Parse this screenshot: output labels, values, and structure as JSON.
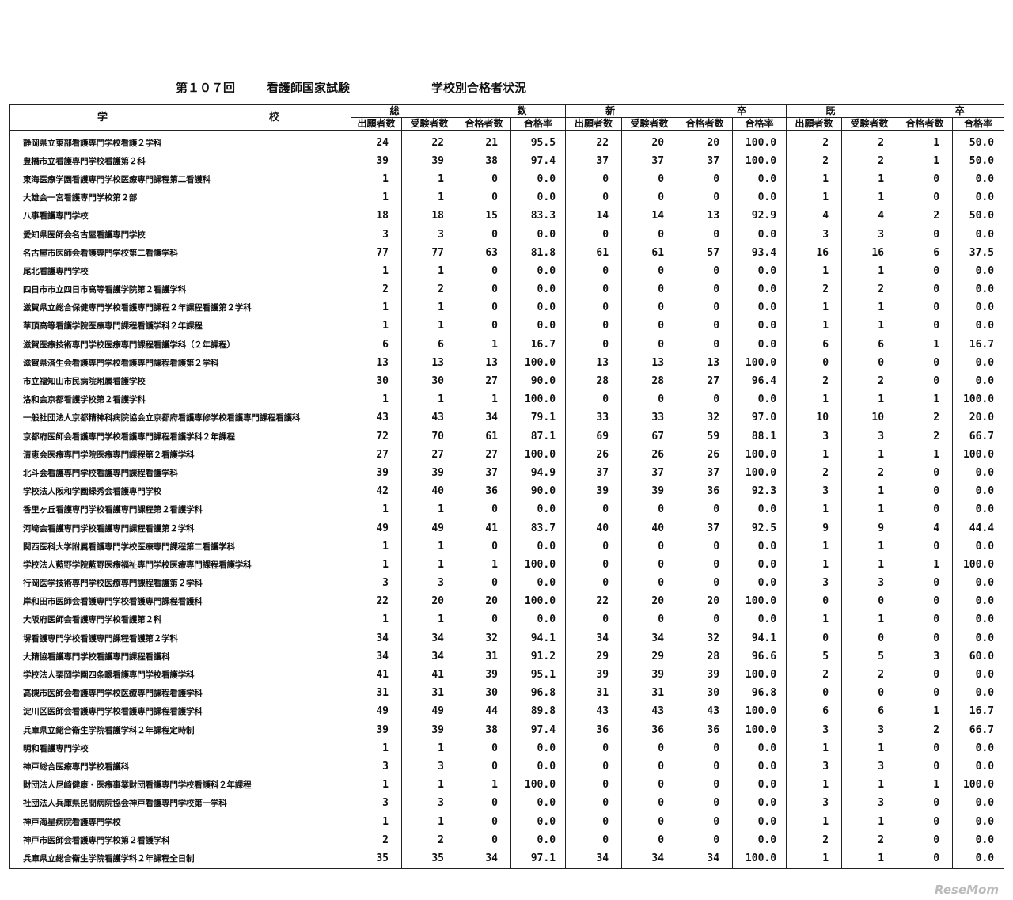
{
  "title": {
    "round": "第１０７回",
    "exam": "看護師国家試験",
    "subject": "学校別合格者状況"
  },
  "header": {
    "school_a": "学",
    "school_b": "校",
    "groups": [
      {
        "a": "総",
        "b": "数"
      },
      {
        "a": "新",
        "b": "卒"
      },
      {
        "a": "既",
        "b": "卒"
      }
    ],
    "columns": [
      "出願者数",
      "受験者数",
      "合格者数",
      "合格率"
    ]
  },
  "rows": [
    {
      "name": "静岡県立東部看護専門学校看護２学科",
      "v": [
        "24",
        "22",
        "21",
        "95.5",
        "22",
        "20",
        "20",
        "100.0",
        "2",
        "2",
        "1",
        "50.0"
      ]
    },
    {
      "name": "豊橋市立看護専門学校看護第２科",
      "v": [
        "39",
        "39",
        "38",
        "97.4",
        "37",
        "37",
        "37",
        "100.0",
        "2",
        "2",
        "1",
        "50.0"
      ]
    },
    {
      "name": "東海医療学園看護専門学校医療専門課程第二看護科",
      "v": [
        "1",
        "1",
        "0",
        "0.0",
        "0",
        "0",
        "0",
        "0.0",
        "1",
        "1",
        "0",
        "0.0"
      ]
    },
    {
      "name": "大雄会一宮看護専門学校第２部",
      "v": [
        "1",
        "1",
        "0",
        "0.0",
        "0",
        "0",
        "0",
        "0.0",
        "1",
        "1",
        "0",
        "0.0"
      ]
    },
    {
      "name": "八事看護専門学校",
      "v": [
        "18",
        "18",
        "15",
        "83.3",
        "14",
        "14",
        "13",
        "92.9",
        "4",
        "4",
        "2",
        "50.0"
      ]
    },
    {
      "name": "愛知県医師会名古屋看護専門学校",
      "v": [
        "3",
        "3",
        "0",
        "0.0",
        "0",
        "0",
        "0",
        "0.0",
        "3",
        "3",
        "0",
        "0.0"
      ]
    },
    {
      "name": "名古屋市医師会看護専門学校第二看護学科",
      "v": [
        "77",
        "77",
        "63",
        "81.8",
        "61",
        "61",
        "57",
        "93.4",
        "16",
        "16",
        "6",
        "37.5"
      ]
    },
    {
      "name": "尾北看護専門学校",
      "v": [
        "1",
        "1",
        "0",
        "0.0",
        "0",
        "0",
        "0",
        "0.0",
        "1",
        "1",
        "0",
        "0.0"
      ]
    },
    {
      "name": "四日市市立四日市高等看護学院第２看護学科",
      "v": [
        "2",
        "2",
        "0",
        "0.0",
        "0",
        "0",
        "0",
        "0.0",
        "2",
        "2",
        "0",
        "0.0"
      ]
    },
    {
      "name": "滋賀県立総合保健専門学校看護専門課程２年課程看護第２学科",
      "v": [
        "1",
        "1",
        "0",
        "0.0",
        "0",
        "0",
        "0",
        "0.0",
        "1",
        "1",
        "0",
        "0.0"
      ]
    },
    {
      "name": "華頂高等看護学院医療専門課程看護学科２年課程",
      "v": [
        "1",
        "1",
        "0",
        "0.0",
        "0",
        "0",
        "0",
        "0.0",
        "1",
        "1",
        "0",
        "0.0"
      ]
    },
    {
      "name": "滋賀医療技術専門学校医療専門課程看護学科（２年課程）",
      "v": [
        "6",
        "6",
        "1",
        "16.7",
        "0",
        "0",
        "0",
        "0.0",
        "6",
        "6",
        "1",
        "16.7"
      ]
    },
    {
      "name": "滋賀県済生会看護専門学校看護専門課程看護第２学科",
      "v": [
        "13",
        "13",
        "13",
        "100.0",
        "13",
        "13",
        "13",
        "100.0",
        "0",
        "0",
        "0",
        "0.0"
      ]
    },
    {
      "name": "市立福知山市民病院附属看護学校",
      "v": [
        "30",
        "30",
        "27",
        "90.0",
        "28",
        "28",
        "27",
        "96.4",
        "2",
        "2",
        "0",
        "0.0"
      ]
    },
    {
      "name": "洛和会京都看護学校第２看護学科",
      "v": [
        "1",
        "1",
        "1",
        "100.0",
        "0",
        "0",
        "0",
        "0.0",
        "1",
        "1",
        "1",
        "100.0"
      ]
    },
    {
      "name": "一般社団法人京都精神科病院協会立京都府看護専修学校看護専門課程看護科",
      "v": [
        "43",
        "43",
        "34",
        "79.1",
        "33",
        "33",
        "32",
        "97.0",
        "10",
        "10",
        "2",
        "20.0"
      ]
    },
    {
      "name": "京都府医師会看護専門学校看護専門課程看護学科２年課程",
      "v": [
        "72",
        "70",
        "61",
        "87.1",
        "69",
        "67",
        "59",
        "88.1",
        "3",
        "3",
        "2",
        "66.7"
      ]
    },
    {
      "name": "清恵会医療専門学院医療専門課程第２看護学科",
      "v": [
        "27",
        "27",
        "27",
        "100.0",
        "26",
        "26",
        "26",
        "100.0",
        "1",
        "1",
        "1",
        "100.0"
      ]
    },
    {
      "name": "北斗会看護専門学校看護専門課程看護学科",
      "v": [
        "39",
        "39",
        "37",
        "94.9",
        "37",
        "37",
        "37",
        "100.0",
        "2",
        "2",
        "0",
        "0.0"
      ]
    },
    {
      "name": "学校法人阪和学園緑秀会看護専門学校",
      "v": [
        "42",
        "40",
        "36",
        "90.0",
        "39",
        "39",
        "36",
        "92.3",
        "3",
        "1",
        "0",
        "0.0"
      ]
    },
    {
      "name": "香里ヶ丘看護専門学校看護専門課程第２看護学科",
      "v": [
        "1",
        "1",
        "0",
        "0.0",
        "0",
        "0",
        "0",
        "0.0",
        "1",
        "1",
        "0",
        "0.0"
      ]
    },
    {
      "name": "河﨑会看護専門学校看護専門課程看護第２学科",
      "v": [
        "49",
        "49",
        "41",
        "83.7",
        "40",
        "40",
        "37",
        "92.5",
        "9",
        "9",
        "4",
        "44.4"
      ]
    },
    {
      "name": "関西医科大学附属看護専門学校医療専門課程第二看護学科",
      "v": [
        "1",
        "1",
        "0",
        "0.0",
        "0",
        "0",
        "0",
        "0.0",
        "1",
        "1",
        "0",
        "0.0"
      ]
    },
    {
      "name": "学校法人藍野学院藍野医療福祉専門学校医療専門課程看護学科",
      "v": [
        "1",
        "1",
        "1",
        "100.0",
        "0",
        "0",
        "0",
        "0.0",
        "1",
        "1",
        "1",
        "100.0"
      ]
    },
    {
      "name": "行岡医学技術専門学校医療専門課程看護第２学科",
      "v": [
        "3",
        "3",
        "0",
        "0.0",
        "0",
        "0",
        "0",
        "0.0",
        "3",
        "3",
        "0",
        "0.0"
      ]
    },
    {
      "name": "岸和田市医師会看護専門学校看護専門課程看護科",
      "v": [
        "22",
        "20",
        "20",
        "100.0",
        "22",
        "20",
        "20",
        "100.0",
        "0",
        "0",
        "0",
        "0.0"
      ]
    },
    {
      "name": "大阪府医師会看護専門学校看護第２科",
      "v": [
        "1",
        "1",
        "0",
        "0.0",
        "0",
        "0",
        "0",
        "0.0",
        "1",
        "1",
        "0",
        "0.0"
      ]
    },
    {
      "name": "堺看護専門学校看護専門課程看護第２学科",
      "v": [
        "34",
        "34",
        "32",
        "94.1",
        "34",
        "34",
        "32",
        "94.1",
        "0",
        "0",
        "0",
        "0.0"
      ]
    },
    {
      "name": "大精協看護専門学校看護専門課程看護科",
      "v": [
        "34",
        "34",
        "31",
        "91.2",
        "29",
        "29",
        "28",
        "96.6",
        "5",
        "5",
        "3",
        "60.0"
      ]
    },
    {
      "name": "学校法人栗岡学園四条畷看護専門学校看護学科",
      "v": [
        "41",
        "41",
        "39",
        "95.1",
        "39",
        "39",
        "39",
        "100.0",
        "2",
        "2",
        "0",
        "0.0"
      ]
    },
    {
      "name": "高槻市医師会看護専門学校医療専門課程看護学科",
      "v": [
        "31",
        "31",
        "30",
        "96.8",
        "31",
        "31",
        "30",
        "96.8",
        "0",
        "0",
        "0",
        "0.0"
      ]
    },
    {
      "name": "淀川区医師会看護専門学校看護専門課程看護学科",
      "v": [
        "49",
        "49",
        "44",
        "89.8",
        "43",
        "43",
        "43",
        "100.0",
        "6",
        "6",
        "1",
        "16.7"
      ]
    },
    {
      "name": "兵庫県立総合衛生学院看護学科２年課程定時制",
      "v": [
        "39",
        "39",
        "38",
        "97.4",
        "36",
        "36",
        "36",
        "100.0",
        "3",
        "3",
        "2",
        "66.7"
      ]
    },
    {
      "name": "明和看護専門学校",
      "v": [
        "1",
        "1",
        "0",
        "0.0",
        "0",
        "0",
        "0",
        "0.0",
        "1",
        "1",
        "0",
        "0.0"
      ]
    },
    {
      "name": "神戸総合医療専門学校看護科",
      "v": [
        "3",
        "3",
        "0",
        "0.0",
        "0",
        "0",
        "0",
        "0.0",
        "3",
        "3",
        "0",
        "0.0"
      ]
    },
    {
      "name": "財団法人尼崎健康・医療事業財団看護専門学校看護科２年課程",
      "v": [
        "1",
        "1",
        "1",
        "100.0",
        "0",
        "0",
        "0",
        "0.0",
        "1",
        "1",
        "1",
        "100.0"
      ]
    },
    {
      "name": "社団法人兵庫県民間病院協会神戸看護専門学校第一学科",
      "v": [
        "3",
        "3",
        "0",
        "0.0",
        "0",
        "0",
        "0",
        "0.0",
        "3",
        "3",
        "0",
        "0.0"
      ]
    },
    {
      "name": "神戸海星病院看護専門学校",
      "v": [
        "1",
        "1",
        "0",
        "0.0",
        "0",
        "0",
        "0",
        "0.0",
        "1",
        "1",
        "0",
        "0.0"
      ]
    },
    {
      "name": "神戸市医師会看護専門学校第２看護学科",
      "v": [
        "2",
        "2",
        "0",
        "0.0",
        "0",
        "0",
        "0",
        "0.0",
        "2",
        "2",
        "0",
        "0.0"
      ]
    },
    {
      "name": "兵庫県立総合衛生学院看護学科２年課程全日制",
      "v": [
        "35",
        "35",
        "34",
        "97.1",
        "34",
        "34",
        "34",
        "100.0",
        "1",
        "1",
        "0",
        "0.0"
      ]
    }
  ],
  "watermark": "ReseMom"
}
